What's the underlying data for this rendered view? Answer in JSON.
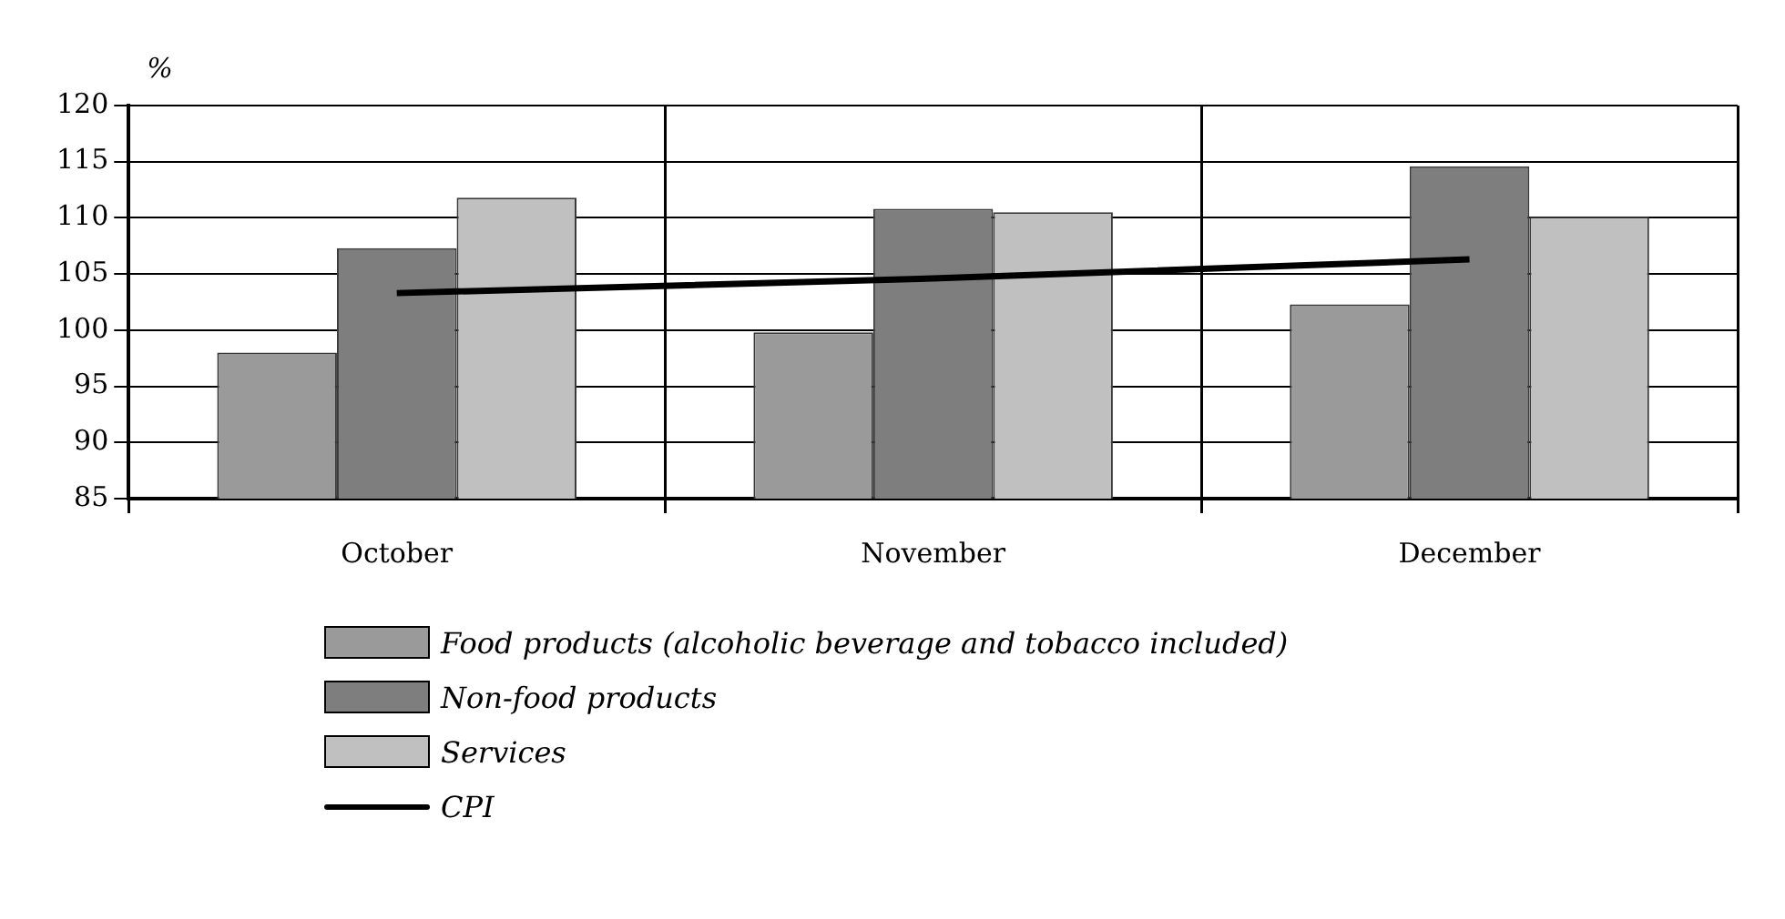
{
  "chart_data": {
    "type": "bar",
    "ylabel": "%",
    "categories": [
      "October",
      "November",
      "December"
    ],
    "series": [
      {
        "name": "Food products (alcoholic beverage and tobacco included)",
        "color": "#9a9a9a",
        "values": [
          98,
          99.8,
          102.3
        ]
      },
      {
        "name": "Non-food products",
        "color": "#7e7e7e",
        "values": [
          107.3,
          110.8,
          114.6
        ]
      },
      {
        "name": "Services",
        "color": "#c0c0c0",
        "values": [
          111.8,
          110.5,
          110.1
        ]
      },
      {
        "name": "CPI",
        "type": "line",
        "color": "#000000",
        "values": [
          103.3,
          104.6,
          106.3
        ]
      }
    ],
    "ylim": [
      85,
      120
    ],
    "yticks": [
      85,
      90,
      95,
      100,
      105,
      110,
      115,
      120
    ],
    "grid": true,
    "legend": "bottom",
    "marker": "none"
  }
}
